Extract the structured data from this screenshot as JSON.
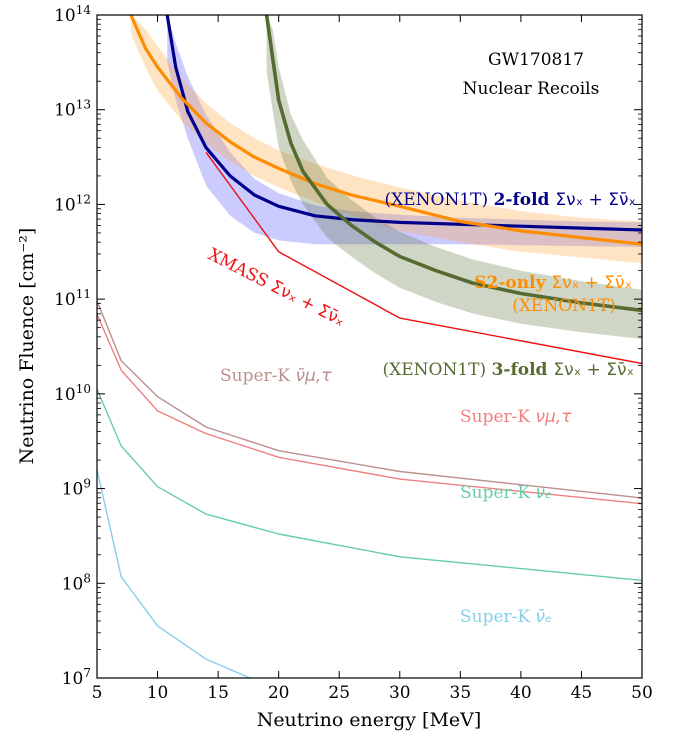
{
  "chart_data": {
    "type": "line",
    "title": "GW170817",
    "subtitle": "Nuclear Recoils",
    "xlabel": "Neutrino energy [MeV]",
    "ylabel": "Neutrino Fluence [cm⁻²]",
    "xlim": [
      5,
      50
    ],
    "ylim_exponents": [
      7,
      14
    ],
    "yscale": "log",
    "grid": false,
    "x_ticks": [
      "5",
      "10",
      "15",
      "20",
      "25",
      "30",
      "35",
      "40",
      "45",
      "50"
    ],
    "y_ticks": [
      {
        "base": "10",
        "exp": "7"
      },
      {
        "base": "10",
        "exp": "8"
      },
      {
        "base": "10",
        "exp": "9"
      },
      {
        "base": "10",
        "exp": "10"
      },
      {
        "base": "10",
        "exp": "11"
      },
      {
        "base": "10",
        "exp": "12"
      },
      {
        "base": "10",
        "exp": "13"
      },
      {
        "base": "10",
        "exp": "14"
      }
    ],
    "series": [
      {
        "label_parts": [
          "(XENON1T) ",
          "2-fold ",
          "Σνₓ + Σν̄ₓ"
        ],
        "color": "#00008b",
        "x": [
          10.8,
          11.5,
          12.5,
          14,
          16,
          18,
          20,
          23,
          26,
          30,
          35,
          40,
          45,
          50
        ],
        "log10_y": [
          14,
          13.45,
          12.98,
          12.6,
          12.3,
          12.1,
          11.98,
          11.88,
          11.84,
          11.81,
          11.79,
          11.77,
          11.75,
          11.73
        ],
        "band_upper": [
          14,
          13.7,
          13.35,
          12.95,
          12.55,
          12.27,
          12.12,
          11.99,
          11.93,
          11.89,
          11.86,
          11.84,
          11.82,
          11.81
        ],
        "band_lower": [
          13.5,
          13.1,
          12.7,
          12.2,
          11.88,
          11.7,
          11.62,
          11.58,
          11.58,
          11.58,
          11.58,
          11.57,
          11.56,
          11.55
        ]
      },
      {
        "label_parts": [
          "S2-only ",
          "Σνₓ + Σν̄ₓ",
          "(XENON1T)"
        ],
        "color": "#ff8c00",
        "x": [
          7.8,
          9,
          10,
          12,
          14,
          16,
          18,
          20,
          23,
          26,
          30,
          35,
          40,
          45,
          50
        ],
        "log10_y": [
          14,
          13.65,
          13.45,
          13.12,
          12.86,
          12.66,
          12.5,
          12.38,
          12.22,
          12.1,
          11.98,
          11.82,
          11.72,
          11.65,
          11.58
        ],
        "band_upper": [
          14,
          13.85,
          13.67,
          13.33,
          13.07,
          12.86,
          12.7,
          12.57,
          12.43,
          12.31,
          12.18,
          12.04,
          11.93,
          11.86,
          11.82
        ],
        "band_lower": [
          13.8,
          13.45,
          13.2,
          12.88,
          12.64,
          12.45,
          12.3,
          12.18,
          12.03,
          11.88,
          11.72,
          11.6,
          11.5,
          11.44,
          11.38
        ]
      },
      {
        "label_parts": [
          "(XENON1T) ",
          "3-fold ",
          "Σνₓ + Σν̄ₓ"
        ],
        "color": "#556b2f",
        "x": [
          19.0,
          19.5,
          20,
          21,
          22,
          24,
          26,
          28,
          30,
          33,
          36,
          40,
          45,
          50
        ],
        "log10_y": [
          14,
          13.55,
          13.1,
          12.65,
          12.35,
          12.0,
          11.78,
          11.6,
          11.45,
          11.3,
          11.17,
          11.06,
          10.96,
          10.88
        ],
        "band_upper": [
          14,
          13.85,
          13.45,
          12.95,
          12.68,
          12.28,
          12.05,
          11.86,
          11.71,
          11.55,
          11.42,
          11.3,
          11.19,
          11.1
        ],
        "band_lower": [
          13.4,
          13.0,
          12.6,
          12.25,
          12.0,
          11.65,
          11.45,
          11.27,
          11.12,
          10.97,
          10.85,
          10.74,
          10.65,
          10.58
        ]
      },
      {
        "label_parts": [
          "XMASS ",
          "Σνₓ + Σν̄ₓ"
        ],
        "color": "#ee1111",
        "x": [
          14,
          20,
          30,
          50
        ],
        "log10_y": [
          12.55,
          11.5,
          10.8,
          10.32
        ]
      },
      {
        "label_parts": [
          "Super-K ",
          "ν̄μ,τ"
        ],
        "color": "#bc8f8f",
        "x": [
          5,
          7,
          10,
          14,
          20,
          30,
          50
        ],
        "log10_y": [
          10.98,
          10.35,
          9.97,
          9.65,
          9.4,
          9.18,
          8.9
        ]
      },
      {
        "label_parts": [
          "Super-K ",
          "νμ,τ"
        ],
        "color": "#f08080",
        "x": [
          5,
          7,
          10,
          14,
          20,
          30,
          50
        ],
        "log10_y": [
          10.84,
          10.25,
          9.82,
          9.58,
          9.33,
          9.1,
          8.84
        ]
      },
      {
        "label_parts": [
          "Super-K ",
          "νₑ"
        ],
        "color": "#66cdaa",
        "x": [
          5,
          7,
          10,
          14,
          20,
          30,
          50
        ],
        "log10_y": [
          10.05,
          9.45,
          9.02,
          8.73,
          8.52,
          8.28,
          8.03
        ]
      },
      {
        "label_parts": [
          "Super-K ",
          "ν̄ₑ"
        ],
        "color": "#87ceeb",
        "x": [
          5,
          7,
          10,
          14,
          20,
          30,
          50
        ],
        "log10_y": [
          9.2,
          8.07,
          7.55,
          7.2,
          6.87,
          6.55,
          6.15
        ]
      }
    ]
  }
}
